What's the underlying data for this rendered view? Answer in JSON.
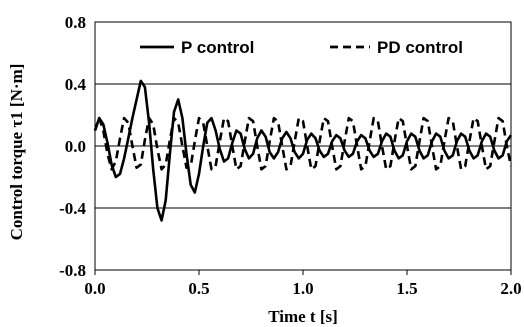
{
  "chart_data": {
    "type": "line",
    "xlabel": "Time  t [s]",
    "ylabel": "Control torque  τ1 [N·m]",
    "xlim": [
      0.0,
      2.0
    ],
    "ylim": [
      -0.8,
      0.8
    ],
    "x_ticks": [
      "0.0",
      "0.5",
      "1.0",
      "1.5",
      "2.0"
    ],
    "y_ticks": [
      "0.8",
      "0.4",
      "0.0",
      "-0.4",
      "-0.8"
    ],
    "x_tick_values": [
      0.0,
      0.5,
      1.0,
      1.5,
      2.0
    ],
    "y_tick_values": [
      0.8,
      0.4,
      0.0,
      -0.4,
      -0.8
    ],
    "grid": "horizontal",
    "legend_position": "top",
    "series": [
      {
        "name": "P control",
        "style": "solid",
        "x": [
          0.0,
          0.02,
          0.04,
          0.06,
          0.08,
          0.1,
          0.12,
          0.14,
          0.16,
          0.18,
          0.2,
          0.22,
          0.24,
          0.26,
          0.28,
          0.3,
          0.32,
          0.34,
          0.36,
          0.38,
          0.4,
          0.42,
          0.44,
          0.46,
          0.48,
          0.5,
          0.52,
          0.54,
          0.56,
          0.58,
          0.6,
          0.62,
          0.64,
          0.66,
          0.68,
          0.7,
          0.72,
          0.74,
          0.76,
          0.78,
          0.8,
          0.82,
          0.84,
          0.86,
          0.88,
          0.9,
          0.92,
          0.94,
          0.96,
          0.98,
          1.0,
          1.02,
          1.04,
          1.06,
          1.08,
          1.1,
          1.12,
          1.14,
          1.16,
          1.18,
          1.2,
          1.22,
          1.24,
          1.26,
          1.28,
          1.3,
          1.32,
          1.34,
          1.36,
          1.38,
          1.4,
          1.42,
          1.44,
          1.46,
          1.48,
          1.5,
          1.52,
          1.54,
          1.56,
          1.58,
          1.6,
          1.62,
          1.64,
          1.66,
          1.68,
          1.7,
          1.72,
          1.74,
          1.76,
          1.78,
          1.8,
          1.82,
          1.84,
          1.86,
          1.88,
          1.9,
          1.92,
          1.94,
          1.96,
          1.98,
          2.0
        ],
        "values": [
          0.1,
          0.18,
          0.14,
          0.02,
          -0.12,
          -0.2,
          -0.18,
          -0.08,
          0.05,
          0.18,
          0.3,
          0.42,
          0.38,
          0.15,
          -0.15,
          -0.4,
          -0.48,
          -0.35,
          -0.05,
          0.22,
          0.3,
          0.18,
          -0.05,
          -0.25,
          -0.3,
          -0.18,
          0.0,
          0.15,
          0.18,
          0.1,
          -0.02,
          -0.1,
          -0.08,
          0.02,
          0.1,
          0.08,
          -0.02,
          -0.08,
          -0.05,
          0.05,
          0.1,
          0.06,
          -0.04,
          -0.08,
          -0.04,
          0.05,
          0.09,
          0.05,
          -0.04,
          -0.08,
          -0.05,
          0.04,
          0.08,
          0.05,
          -0.03,
          -0.07,
          -0.05,
          0.03,
          0.07,
          0.05,
          -0.03,
          -0.07,
          -0.05,
          0.03,
          0.07,
          0.05,
          -0.03,
          -0.07,
          -0.05,
          0.03,
          0.08,
          0.06,
          -0.03,
          -0.08,
          -0.06,
          0.03,
          0.08,
          0.06,
          -0.03,
          -0.08,
          -0.06,
          0.03,
          0.08,
          0.06,
          -0.03,
          -0.08,
          -0.06,
          0.03,
          0.08,
          0.06,
          -0.03,
          -0.08,
          -0.06,
          0.03,
          0.08,
          0.06,
          -0.03,
          -0.08,
          -0.06,
          0.03,
          0.07
        ]
      },
      {
        "name": "PD control",
        "style": "dashed",
        "x": [
          0.0,
          0.02,
          0.04,
          0.06,
          0.08,
          0.1,
          0.12,
          0.14,
          0.16,
          0.18,
          0.2,
          0.22,
          0.24,
          0.26,
          0.28,
          0.3,
          0.32,
          0.34,
          0.36,
          0.38,
          0.4,
          0.42,
          0.44,
          0.46,
          0.48,
          0.5,
          0.52,
          0.54,
          0.56,
          0.58,
          0.6,
          0.62,
          0.64,
          0.66,
          0.68,
          0.7,
          0.72,
          0.74,
          0.76,
          0.78,
          0.8,
          0.82,
          0.84,
          0.86,
          0.88,
          0.9,
          0.92,
          0.94,
          0.96,
          0.98,
          1.0,
          1.02,
          1.04,
          1.06,
          1.08,
          1.1,
          1.12,
          1.14,
          1.16,
          1.18,
          1.2,
          1.22,
          1.24,
          1.26,
          1.28,
          1.3,
          1.32,
          1.34,
          1.36,
          1.38,
          1.4,
          1.42,
          1.44,
          1.46,
          1.48,
          1.5,
          1.52,
          1.54,
          1.56,
          1.58,
          1.6,
          1.62,
          1.64,
          1.66,
          1.68,
          1.7,
          1.72,
          1.74,
          1.76,
          1.78,
          1.8,
          1.82,
          1.84,
          1.86,
          1.88,
          1.9,
          1.92,
          1.94,
          1.96,
          1.98,
          2.0
        ],
        "values": [
          0.1,
          0.18,
          0.1,
          -0.05,
          -0.15,
          -0.1,
          0.05,
          0.18,
          0.15,
          0.0,
          -0.14,
          -0.12,
          0.04,
          0.18,
          0.14,
          -0.02,
          -0.15,
          -0.12,
          0.04,
          0.18,
          0.15,
          0.0,
          -0.14,
          -0.13,
          0.03,
          0.18,
          0.15,
          0.0,
          -0.15,
          -0.13,
          0.03,
          0.18,
          0.16,
          0.0,
          -0.15,
          -0.13,
          0.03,
          0.18,
          0.16,
          0.0,
          -0.15,
          -0.13,
          0.03,
          0.18,
          0.16,
          0.0,
          -0.15,
          -0.13,
          0.03,
          0.18,
          0.16,
          0.0,
          -0.15,
          -0.13,
          0.03,
          0.18,
          0.16,
          0.0,
          -0.15,
          -0.13,
          0.03,
          0.18,
          0.16,
          0.0,
          -0.15,
          -0.13,
          0.03,
          0.18,
          0.16,
          0.0,
          -0.15,
          -0.13,
          0.03,
          0.18,
          0.16,
          0.0,
          -0.15,
          -0.13,
          0.03,
          0.18,
          0.16,
          0.0,
          -0.15,
          -0.13,
          0.03,
          0.18,
          0.16,
          0.0,
          -0.15,
          -0.13,
          0.03,
          0.18,
          0.16,
          0.0,
          -0.15,
          -0.13,
          0.03,
          0.18,
          0.16,
          0.0,
          -0.13
        ]
      }
    ]
  }
}
